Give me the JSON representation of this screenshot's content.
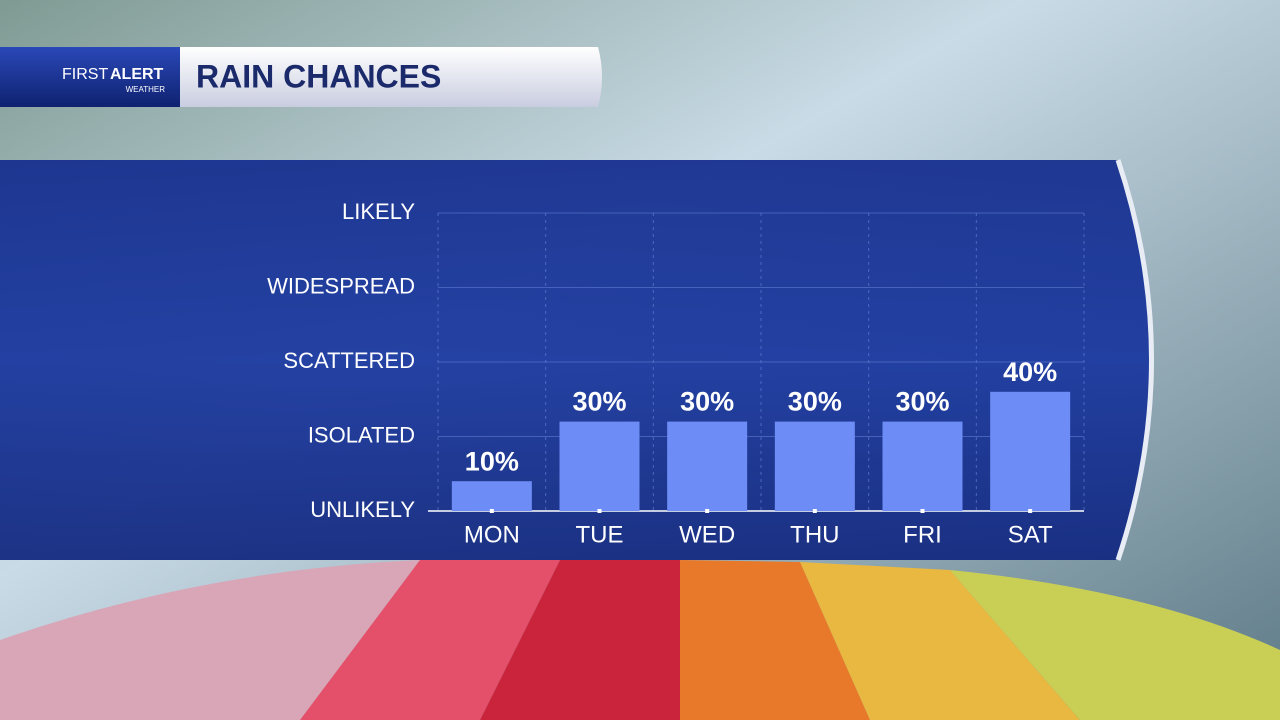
{
  "chart_data": {
    "type": "bar",
    "title": "RAIN CHANCES",
    "logo": {
      "first": "FIRST",
      "alert": "ALERT",
      "sub": "WEATHER"
    },
    "categories": [
      "MON",
      "TUE",
      "WED",
      "THU",
      "FRI",
      "SAT"
    ],
    "values": [
      10,
      30,
      30,
      30,
      30,
      40
    ],
    "value_labels": [
      "10%",
      "30%",
      "30%",
      "30%",
      "30%",
      "40%"
    ],
    "color": "#6d8cf5",
    "ylim": [
      0,
      100
    ],
    "yticks": [
      {
        "value": 0,
        "label": "UNLIKELY"
      },
      {
        "value": 25,
        "label": "ISOLATED"
      },
      {
        "value": 50,
        "label": "SCATTERED"
      },
      {
        "value": 75,
        "label": "WIDESPREAD"
      },
      {
        "value": 100,
        "label": "LIKELY"
      }
    ],
    "grid": true
  }
}
